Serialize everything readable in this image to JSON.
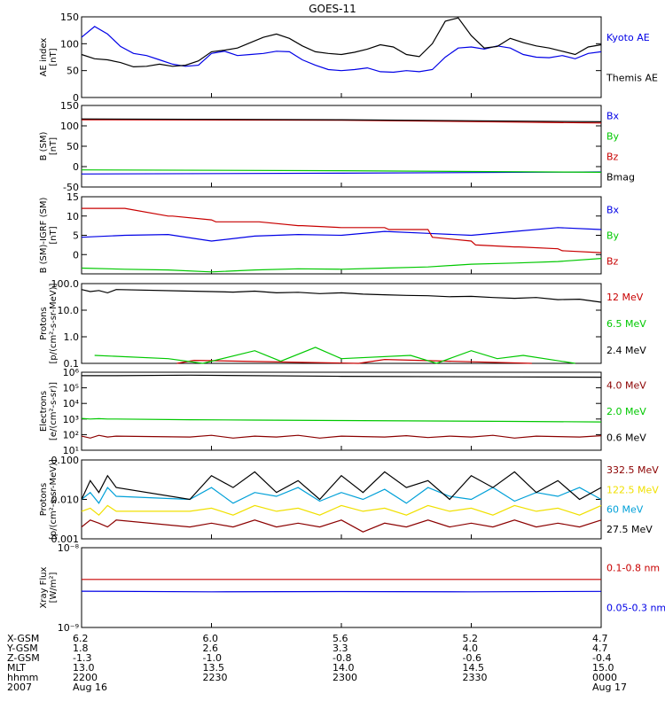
{
  "title": "GOES-11",
  "colors": {
    "black": "#000000",
    "blue": "#0000e6",
    "green": "#00c800",
    "red": "#c80000",
    "darkred": "#8b0000",
    "cyan": "#00a0d8",
    "yellow": "#f0e000"
  },
  "chart_data": [
    {
      "id": "ae",
      "type": "line",
      "ylabel": [
        "AE index",
        "[nT]"
      ],
      "ylim": [
        0,
        150
      ],
      "yticks": [
        0,
        50,
        100,
        150
      ],
      "series": [
        {
          "name": "Kyoto AE",
          "color": "blue",
          "x": [
            0,
            3,
            6,
            9,
            12,
            15,
            18,
            21,
            24,
            27,
            30,
            33,
            36,
            39,
            42,
            45,
            48,
            51,
            54,
            57,
            60,
            63,
            66,
            69,
            72,
            75,
            78,
            81,
            84,
            87,
            90,
            93,
            96,
            99,
            102,
            105,
            108,
            111,
            114,
            117,
            120
          ],
          "y": [
            112,
            132,
            118,
            95,
            82,
            78,
            70,
            62,
            58,
            60,
            82,
            86,
            78,
            80,
            82,
            86,
            85,
            70,
            60,
            52,
            50,
            52,
            55,
            48,
            47,
            50,
            48,
            52,
            75,
            92,
            94,
            90,
            96,
            92,
            80,
            75,
            74,
            78,
            72,
            82,
            85
          ]
        },
        {
          "name": "Themis AE",
          "color": "black",
          "x": [
            0,
            3,
            6,
            9,
            12,
            15,
            18,
            21,
            24,
            27,
            30,
            33,
            36,
            39,
            42,
            45,
            48,
            51,
            54,
            57,
            60,
            63,
            66,
            69,
            72,
            75,
            78,
            81,
            84,
            87,
            90,
            93,
            96,
            99,
            102,
            105,
            108,
            111,
            114,
            117,
            120
          ],
          "y": [
            80,
            72,
            70,
            65,
            57,
            58,
            62,
            58,
            60,
            68,
            85,
            88,
            92,
            102,
            112,
            118,
            110,
            96,
            85,
            82,
            80,
            84,
            90,
            98,
            94,
            80,
            76,
            100,
            142,
            148,
            115,
            92,
            95,
            110,
            102,
            96,
            92,
            86,
            80,
            94,
            98
          ]
        }
      ]
    },
    {
      "id": "b_sm",
      "type": "line",
      "ylabel": [
        "B (SM)",
        "[nT]"
      ],
      "ylim": [
        -50,
        150
      ],
      "yticks": [
        -50,
        0,
        50,
        100,
        150
      ],
      "series": [
        {
          "name": "Bx",
          "color": "blue",
          "x": [
            0,
            60,
            120
          ],
          "y": [
            -18,
            -16,
            -13
          ]
        },
        {
          "name": "By",
          "color": "green",
          "x": [
            0,
            60,
            120
          ],
          "y": [
            -8,
            -10,
            -14
          ]
        },
        {
          "name": "Bz",
          "color": "red",
          "x": [
            0,
            60,
            120
          ],
          "y": [
            115,
            114,
            107
          ]
        },
        {
          "name": "Bmag",
          "color": "black",
          "x": [
            0,
            60,
            120
          ],
          "y": [
            117,
            115,
            110
          ]
        }
      ]
    },
    {
      "id": "b_igrf",
      "type": "line",
      "ylabel": [
        "B (SM)-IGRF (SM)",
        "[nT]"
      ],
      "ylim": [
        -5,
        15
      ],
      "yticks": [
        0,
        5,
        10,
        15
      ],
      "series": [
        {
          "name": "Bx",
          "color": "blue",
          "x": [
            0,
            10,
            20,
            30,
            40,
            50,
            60,
            70,
            80,
            90,
            100,
            110,
            120
          ],
          "y": [
            4.5,
            5.0,
            5.2,
            3.5,
            4.8,
            5.2,
            5.0,
            6.0,
            5.5,
            5.0,
            6.0,
            7.0,
            6.5
          ]
        },
        {
          "name": "By",
          "color": "green",
          "x": [
            0,
            10,
            20,
            30,
            40,
            50,
            60,
            70,
            80,
            90,
            100,
            110,
            120
          ],
          "y": [
            -3.5,
            -3.8,
            -4.0,
            -4.5,
            -4.0,
            -3.7,
            -3.8,
            -3.5,
            -3.2,
            -2.5,
            -2.2,
            -1.8,
            -1.0
          ]
        },
        {
          "name": "Bz",
          "color": "red",
          "x": [
            0,
            10,
            20,
            21,
            30,
            31,
            40,
            41,
            50,
            51,
            60,
            70,
            71,
            80,
            81,
            90,
            91,
            100,
            101,
            110,
            111,
            120
          ],
          "y": [
            12,
            12,
            10,
            10,
            9,
            8.5,
            8.5,
            8.5,
            7.5,
            7.5,
            7.0,
            7.0,
            6.5,
            6.5,
            4.5,
            3.5,
            2.5,
            2.0,
            2.0,
            1.5,
            1.0,
            0.5
          ]
        }
      ]
    },
    {
      "id": "protons_low",
      "type": "line",
      "ylabel": [
        "Protons",
        "[p/(cm²-s-sr-MeV)]"
      ],
      "yscale": "log",
      "ylim": [
        0.1,
        100.0
      ],
      "yticks": [
        0.1,
        1.0,
        10.0,
        100.0
      ],
      "yticklabels": [
        "0.1",
        "1.0",
        "10.0",
        "100.0"
      ],
      "series": [
        {
          "name": "12 MeV",
          "color": "red",
          "x": [
            22,
            26,
            64,
            70,
            104
          ],
          "y": [
            0.1,
            0.13,
            0.1,
            0.14,
            0.1
          ]
        },
        {
          "name": "6.5 MeV",
          "color": "green",
          "x": [
            3,
            20,
            28,
            40,
            46,
            54,
            60,
            76,
            82,
            90,
            96,
            102,
            114
          ],
          "y": [
            0.2,
            0.15,
            0.1,
            0.3,
            0.12,
            0.4,
            0.15,
            0.2,
            0.1,
            0.3,
            0.15,
            0.2,
            0.1
          ]
        },
        {
          "name": "2.4 MeV",
          "color": "black",
          "x": [
            0,
            2,
            4,
            6,
            8,
            25,
            30,
            35,
            40,
            45,
            50,
            55,
            60,
            65,
            70,
            75,
            80,
            85,
            90,
            95,
            100,
            105,
            110,
            115,
            120
          ],
          "y": [
            60,
            50,
            55,
            45,
            60,
            52,
            50,
            48,
            52,
            45,
            47,
            42,
            45,
            40,
            38,
            36,
            35,
            32,
            33,
            30,
            28,
            30,
            25,
            26,
            20
          ]
        }
      ]
    },
    {
      "id": "electrons",
      "type": "line",
      "ylabel": [
        "Electrons",
        "[e/(cm²-s-sr)]"
      ],
      "yscale": "log",
      "ylim": [
        10,
        1000000
      ],
      "yticks": [
        10,
        100,
        1000,
        10000,
        100000,
        1000000
      ],
      "yticklabels": [
        "10¹",
        "10²",
        "10³",
        "10⁴",
        "10⁵",
        "10⁶"
      ],
      "series": [
        {
          "name": "4.0 MeV",
          "color": "darkred",
          "x": [
            0,
            2,
            4,
            6,
            8,
            25,
            30,
            35,
            40,
            45,
            50,
            55,
            60,
            65,
            70,
            75,
            80,
            85,
            90,
            95,
            100,
            105,
            110,
            115,
            120
          ],
          "y": [
            80,
            60,
            90,
            70,
            80,
            70,
            90,
            60,
            80,
            70,
            90,
            60,
            80,
            75,
            70,
            85,
            65,
            80,
            70,
            90,
            60,
            80,
            75,
            70,
            85
          ]
        },
        {
          "name": "2.0 MeV",
          "color": "green",
          "x": [
            0,
            2,
            4,
            6,
            8,
            25,
            40,
            60,
            80,
            100,
            120
          ],
          "y": [
            1100,
            1000,
            1050,
            1000,
            1000,
            900,
            850,
            800,
            750,
            700,
            650
          ]
        },
        {
          "name": "0.6 MeV",
          "color": "black",
          "x": [
            0,
            8,
            25,
            60,
            100,
            120
          ],
          "y": [
            600000,
            600000,
            650000,
            550000,
            500000,
            480000
          ]
        }
      ]
    },
    {
      "id": "protons_high",
      "type": "line",
      "ylabel": [
        "Protons",
        "[p/(cm²-s-sr-MeV)]"
      ],
      "yscale": "log",
      "ylim": [
        0.001,
        0.1
      ],
      "yticks": [
        0.001,
        0.01,
        0.1
      ],
      "yticklabels": [
        "0.001",
        "0.010",
        "0.100"
      ],
      "series": [
        {
          "name": "332.5 MeV",
          "color": "darkred",
          "x": [
            0,
            2,
            4,
            6,
            8,
            25,
            30,
            35,
            40,
            45,
            50,
            55,
            60,
            65,
            70,
            75,
            80,
            85,
            90,
            95,
            100,
            105,
            110,
            115,
            120
          ],
          "y": [
            0.002,
            0.003,
            0.0025,
            0.002,
            0.003,
            0.002,
            0.0025,
            0.002,
            0.003,
            0.002,
            0.0025,
            0.002,
            0.003,
            0.0015,
            0.0025,
            0.002,
            0.003,
            0.002,
            0.0025,
            0.002,
            0.003,
            0.002,
            0.0025,
            0.002,
            0.003
          ]
        },
        {
          "name": "122.5 MeV",
          "color": "yellow",
          "x": [
            0,
            2,
            4,
            6,
            8,
            25,
            30,
            35,
            40,
            45,
            50,
            55,
            60,
            65,
            70,
            75,
            80,
            85,
            90,
            95,
            100,
            105,
            110,
            115,
            120
          ],
          "y": [
            0.005,
            0.006,
            0.004,
            0.007,
            0.005,
            0.005,
            0.006,
            0.004,
            0.007,
            0.005,
            0.006,
            0.004,
            0.007,
            0.005,
            0.006,
            0.004,
            0.007,
            0.005,
            0.006,
            0.004,
            0.007,
            0.005,
            0.006,
            0.004,
            0.007
          ]
        },
        {
          "name": "60 MeV",
          "color": "cyan",
          "x": [
            0,
            2,
            4,
            6,
            8,
            25,
            30,
            35,
            40,
            45,
            50,
            55,
            60,
            65,
            70,
            75,
            80,
            85,
            90,
            95,
            100,
            105,
            110,
            115,
            120
          ],
          "y": [
            0.01,
            0.015,
            0.008,
            0.02,
            0.012,
            0.01,
            0.02,
            0.008,
            0.015,
            0.012,
            0.02,
            0.009,
            0.015,
            0.01,
            0.018,
            0.008,
            0.02,
            0.012,
            0.01,
            0.02,
            0.009,
            0.015,
            0.012,
            0.02,
            0.01
          ]
        },
        {
          "name": "27.5 MeV",
          "color": "black",
          "x": [
            0,
            2,
            4,
            6,
            8,
            25,
            30,
            35,
            40,
            45,
            50,
            55,
            60,
            65,
            70,
            75,
            80,
            85,
            90,
            95,
            100,
            105,
            110,
            115,
            120
          ],
          "y": [
            0.01,
            0.03,
            0.015,
            0.04,
            0.02,
            0.01,
            0.04,
            0.02,
            0.05,
            0.015,
            0.03,
            0.01,
            0.04,
            0.015,
            0.05,
            0.02,
            0.03,
            0.01,
            0.04,
            0.02,
            0.05,
            0.015,
            0.03,
            0.01,
            0.02
          ]
        }
      ]
    },
    {
      "id": "xray",
      "type": "line",
      "ylabel": [
        "Xray Flux",
        "[W/m²]"
      ],
      "yscale": "log",
      "ylim": [
        1e-09,
        1e-08
      ],
      "yticks": [
        1e-09,
        1e-08
      ],
      "yticklabels": [
        "10⁻⁹",
        "10⁻⁸"
      ],
      "series": [
        {
          "name": "0.1-0.8 nm",
          "color": "red",
          "x": [
            0,
            120
          ],
          "y": [
            4e-09,
            4e-09
          ]
        },
        {
          "name": "0.05-0.3 nm",
          "color": "blue",
          "x": [
            0,
            30,
            60,
            90,
            120
          ],
          "y": [
            2.85e-09,
            2.8e-09,
            2.82e-09,
            2.8e-09,
            2.83e-09
          ]
        }
      ]
    }
  ],
  "xaxis": {
    "xlim": [
      0,
      120
    ],
    "ticks": [
      0,
      30,
      60,
      90,
      120
    ],
    "rows": [
      {
        "label": "X-GSM",
        "values": [
          "6.2",
          "6.0",
          "5.6",
          "5.2",
          "4.7"
        ]
      },
      {
        "label": "Y-GSM",
        "values": [
          "1.8",
          "2.6",
          "3.3",
          "4.0",
          "4.7"
        ]
      },
      {
        "label": "Z-GSM",
        "values": [
          "-1.3",
          "-1.0",
          "-0.8",
          "-0.6",
          "-0.4"
        ]
      },
      {
        "label": "MLT",
        "values": [
          "13.0",
          "13.5",
          "14.0",
          "14.5",
          "15.0"
        ]
      },
      {
        "label": "hhmm",
        "values": [
          "2200",
          "2230",
          "2300",
          "2330",
          "0000"
        ]
      },
      {
        "label": "2007",
        "values": [
          "Aug 16",
          "",
          "",
          "",
          "Aug 17"
        ]
      }
    ]
  }
}
